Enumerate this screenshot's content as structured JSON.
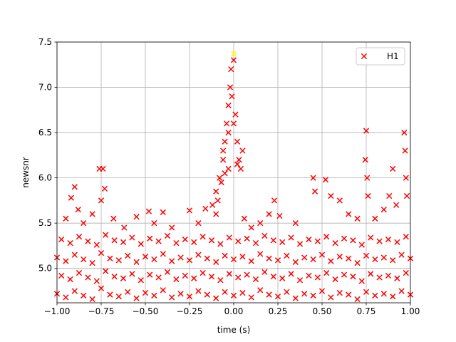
{
  "chart_data": {
    "type": "scatter",
    "xlabel": "time (s)",
    "ylabel": "newsnr",
    "xlim": [
      -1.0,
      1.0
    ],
    "ylim": [
      4.62,
      7.5
    ],
    "xticks": [
      {
        "value": -1.0,
        "label": "−1.00"
      },
      {
        "value": -0.75,
        "label": "−0.75"
      },
      {
        "value": -0.5,
        "label": "−0.50"
      },
      {
        "value": -0.25,
        "label": "−0.25"
      },
      {
        "value": 0,
        "label": "0.00"
      },
      {
        "value": 0.25,
        "label": "0.25"
      },
      {
        "value": 0.5,
        "label": "0.50"
      },
      {
        "value": 0.75,
        "label": "0.75"
      },
      {
        "value": 1.0,
        "label": "1.00"
      }
    ],
    "yticks": [
      {
        "value": 5.0,
        "label": "5.0"
      },
      {
        "value": 5.5,
        "label": "5.5"
      },
      {
        "value": 6.0,
        "label": "6.0"
      },
      {
        "value": 6.5,
        "label": "6.5"
      },
      {
        "value": 7.0,
        "label": "7.0"
      },
      {
        "value": 7.5,
        "label": "7.5"
      }
    ],
    "grid": true,
    "legend": "upper right",
    "series": [
      {
        "name": "H1",
        "color": "#ff0000",
        "x": [
          -1.0,
          -0.95,
          -0.9,
          -0.85,
          -0.8,
          -0.75,
          -0.7,
          -0.65,
          -0.6,
          -0.55,
          -0.5,
          -0.45,
          -0.4,
          -0.35,
          -0.3,
          -0.25,
          -0.2,
          -0.15,
          -0.1,
          -0.05,
          0.0,
          0.05,
          0.1,
          0.15,
          0.2,
          0.25,
          0.3,
          0.35,
          0.4,
          0.45,
          0.5,
          0.55,
          0.6,
          0.65,
          0.7,
          0.75,
          0.8,
          0.85,
          0.9,
          0.95,
          1.0,
          -0.975,
          -0.925,
          -0.875,
          -0.825,
          -0.775,
          -0.725,
          -0.675,
          -0.625,
          -0.575,
          -0.525,
          -0.475,
          -0.425,
          -0.375,
          -0.325,
          -0.275,
          -0.225,
          -0.175,
          -0.125,
          -0.075,
          -0.025,
          0.025,
          0.075,
          0.125,
          0.175,
          0.225,
          0.275,
          0.325,
          0.375,
          0.425,
          0.475,
          0.525,
          0.575,
          0.625,
          0.675,
          0.725,
          0.775,
          0.825,
          0.875,
          0.925,
          0.975,
          -1.0,
          -0.95,
          -0.9,
          -0.85,
          -0.8,
          -0.75,
          -0.7,
          -0.65,
          -0.6,
          -0.55,
          -0.5,
          -0.45,
          -0.4,
          -0.35,
          -0.3,
          -0.25,
          -0.2,
          -0.15,
          -0.1,
          -0.05,
          0.0,
          0.05,
          0.1,
          0.15,
          0.2,
          0.25,
          0.3,
          0.35,
          0.4,
          0.45,
          0.5,
          0.55,
          0.6,
          0.65,
          0.7,
          0.75,
          0.8,
          0.85,
          0.9,
          0.95,
          1.0,
          -0.975,
          -0.925,
          -0.875,
          -0.825,
          -0.775,
          -0.725,
          -0.675,
          -0.625,
          -0.575,
          -0.525,
          -0.475,
          -0.425,
          -0.375,
          -0.325,
          -0.275,
          -0.225,
          -0.175,
          -0.125,
          -0.075,
          -0.025,
          0.025,
          0.075,
          0.125,
          0.175,
          0.225,
          0.275,
          0.325,
          0.375,
          0.425,
          0.475,
          0.525,
          0.575,
          0.625,
          0.675,
          0.725,
          0.775,
          0.825,
          0.875,
          0.925,
          0.975,
          -0.95,
          -0.92,
          -0.9,
          -0.88,
          -0.85,
          -0.8,
          -0.76,
          -0.74,
          -0.73,
          -0.75,
          -0.68,
          -0.62,
          -0.55,
          -0.48,
          -0.45,
          -0.4,
          -0.35,
          -0.25,
          -0.2,
          -0.16,
          -0.12,
          -0.1,
          -0.08,
          -0.06,
          -0.05,
          -0.04,
          -0.03,
          -0.02,
          -0.015,
          -0.01,
          0.0,
          0.01,
          0.02,
          0.03,
          0.04,
          0.05,
          0.06,
          0.1,
          0.15,
          0.2,
          0.23,
          0.26,
          0.35,
          0.45,
          0.46,
          0.52,
          0.55,
          0.6,
          0.65,
          0.7,
          0.745,
          0.75,
          0.755,
          0.76,
          0.8,
          0.85,
          0.88,
          0.9,
          0.92,
          0.965,
          0.97,
          0.975,
          0.98,
          -0.03,
          -0.06,
          0.0,
          0.02,
          -0.1,
          -0.09,
          -0.07,
          -0.05,
          -0.03
        ],
        "values": [
          4.72,
          4.68,
          4.75,
          4.7,
          4.66,
          4.78,
          4.71,
          4.69,
          4.74,
          4.67,
          4.73,
          4.7,
          4.76,
          4.68,
          4.72,
          4.69,
          4.75,
          4.71,
          4.67,
          4.74,
          4.7,
          4.73,
          4.68,
          4.76,
          4.71,
          4.69,
          4.74,
          4.67,
          4.72,
          4.7,
          4.75,
          4.68,
          4.73,
          4.71,
          4.66,
          4.74,
          4.7,
          4.72,
          4.69,
          4.75,
          4.71,
          4.92,
          4.88,
          4.95,
          4.9,
          4.86,
          4.97,
          4.91,
          4.89,
          4.94,
          4.87,
          4.93,
          4.9,
          4.96,
          4.88,
          4.92,
          4.89,
          4.95,
          4.91,
          4.87,
          4.94,
          4.9,
          4.93,
          4.88,
          4.96,
          4.91,
          4.89,
          4.94,
          4.87,
          4.92,
          4.9,
          4.95,
          4.88,
          4.93,
          4.91,
          4.86,
          4.94,
          4.9,
          4.92,
          4.89,
          4.95,
          5.12,
          5.08,
          5.15,
          5.1,
          5.06,
          5.17,
          5.11,
          5.09,
          5.14,
          5.07,
          5.13,
          5.1,
          5.16,
          5.08,
          5.12,
          5.09,
          5.15,
          5.11,
          5.07,
          5.14,
          5.1,
          5.13,
          5.08,
          5.16,
          5.11,
          5.09,
          5.14,
          5.07,
          5.12,
          5.1,
          5.15,
          5.08,
          5.13,
          5.11,
          5.06,
          5.14,
          5.1,
          5.12,
          5.09,
          5.15,
          5.11,
          5.32,
          5.28,
          5.35,
          5.3,
          5.26,
          5.37,
          5.31,
          5.29,
          5.34,
          5.27,
          5.33,
          5.3,
          5.36,
          5.28,
          5.32,
          5.29,
          5.35,
          5.31,
          5.27,
          5.34,
          5.3,
          5.33,
          5.28,
          5.36,
          5.31,
          5.29,
          5.34,
          5.27,
          5.32,
          5.3,
          5.35,
          5.28,
          5.33,
          5.31,
          5.26,
          5.34,
          5.3,
          5.32,
          5.29,
          5.35,
          5.55,
          5.78,
          5.9,
          5.65,
          5.5,
          5.6,
          6.1,
          6.1,
          5.88,
          5.75,
          5.55,
          5.45,
          5.57,
          5.63,
          5.5,
          5.62,
          5.45,
          5.64,
          5.5,
          5.66,
          5.7,
          5.85,
          6.0,
          6.2,
          6.4,
          6.6,
          6.8,
          7.0,
          7.2,
          6.9,
          7.3,
          6.7,
          6.4,
          6.2,
          6.1,
          6.3,
          5.55,
          5.45,
          5.5,
          5.6,
          5.75,
          5.58,
          5.5,
          6.0,
          5.85,
          5.98,
          5.8,
          5.75,
          5.6,
          5.55,
          6.2,
          6.52,
          6.0,
          5.8,
          5.55,
          5.65,
          5.8,
          6.1,
          5.7,
          6.5,
          6.3,
          6.0,
          5.8,
          6.5,
          6.3,
          6.6,
          6.15,
          5.6,
          5.75,
          5.95,
          6.05,
          6.1
        ]
      }
    ],
    "highlight": {
      "x": 0.0,
      "y": 7.37,
      "color": "#ffff00"
    }
  }
}
